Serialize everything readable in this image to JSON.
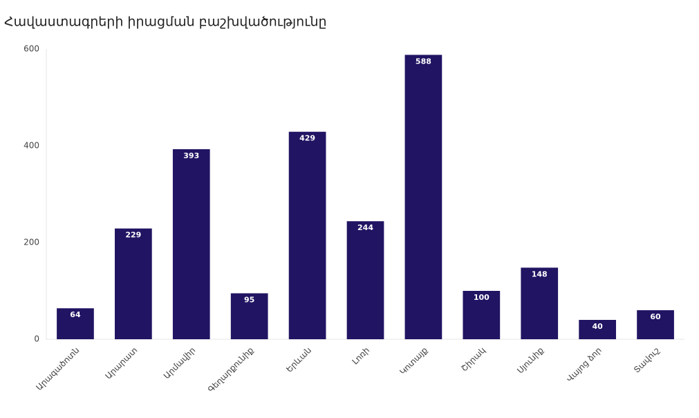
{
  "chart_data": {
    "type": "bar",
    "title": "Հավաստագրերի իրացման բաշխվածությունը",
    "categories": [
      "Արագածոտն",
      "Արարատ",
      "Արմավիր",
      "Գեղարքունիք",
      "Երևան",
      "Լոռի",
      "Կոտայք",
      "Շիրակ",
      "Սյունիք",
      "Վայոց ձոր",
      "Տավուշ"
    ],
    "values": [
      64,
      229,
      393,
      95,
      429,
      244,
      588,
      100,
      148,
      40,
      60
    ],
    "color": "#211463",
    "ylim": [
      0,
      600
    ],
    "yticks": [
      0,
      200,
      400,
      600
    ],
    "grid": false
  }
}
